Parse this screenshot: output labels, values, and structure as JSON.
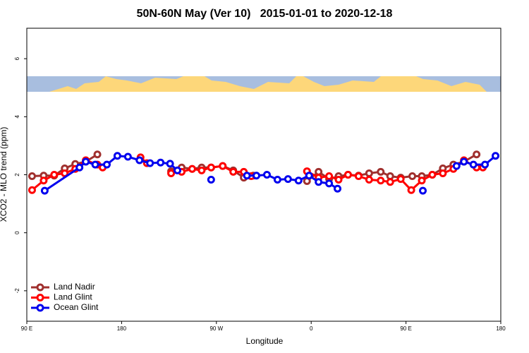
{
  "chart_data": {
    "type": "line",
    "title": "50N-60N May (Ver 10)   2015-01-01 to 2020-12-18",
    "x_label": "Longitude",
    "y_label": "XCO2 - MLO trend (ppm)",
    "xlim": [
      90,
      540
    ],
    "xticks": [
      {
        "value": 90,
        "label": "90 E"
      },
      180,
      {
        "value": 270,
        "label": "90 W"
      },
      {
        "value": 360,
        "label": "0"
      },
      {
        "value": 450,
        "label": "90 E"
      },
      {
        "value": 540,
        "label": "180"
      }
    ],
    "ylim": [
      -3.05,
      7.05
    ],
    "yticks": [
      -2,
      0,
      2,
      4,
      6
    ],
    "legend": "bottom-left",
    "series": [
      {
        "name": "Land Nadir",
        "color": "#a0302e",
        "x": [
          95,
          106,
          116,
          126,
          136,
          146,
          157,
          null,
          227,
          237,
          247,
          256,
          265,
          276,
          286,
          296,
          305,
          null,
          356,
          367,
          377,
          386,
          395,
          405,
          415,
          426,
          435,
          445,
          456,
          465,
          475,
          485,
          495,
          505,
          517
        ],
        "values": [
          1.95,
          1.97,
          1.97,
          2.22,
          2.37,
          2.45,
          2.7,
          null,
          2.12,
          2.25,
          2.2,
          2.25,
          2.25,
          2.3,
          2.15,
          1.9,
          1.97,
          null,
          1.78,
          2.1,
          1.85,
          1.95,
          2.0,
          1.97,
          2.05,
          2.1,
          1.95,
          1.9,
          1.95,
          1.95,
          2.0,
          2.22,
          2.35,
          2.45,
          2.7
        ]
      },
      {
        "name": "Land Glint",
        "color": "#ff0000",
        "x": [
          95,
          106,
          116,
          126,
          136,
          146,
          157,
          162,
          null,
          198,
          204,
          null,
          227,
          237,
          247,
          256,
          265,
          276,
          286,
          296,
          303,
          null,
          356,
          367,
          377,
          386,
          395,
          405,
          415,
          426,
          435,
          445,
          455,
          465,
          475,
          485,
          495,
          505,
          517,
          523
        ],
        "values": [
          1.47,
          1.8,
          2.0,
          2.05,
          2.2,
          2.5,
          2.35,
          2.25,
          null,
          2.6,
          2.4,
          null,
          2.05,
          2.1,
          2.2,
          2.15,
          2.25,
          2.3,
          2.1,
          2.1,
          1.95,
          null,
          2.12,
          1.9,
          1.95,
          1.83,
          2.0,
          1.95,
          1.83,
          1.8,
          1.75,
          1.85,
          1.47,
          1.8,
          2.0,
          2.05,
          2.2,
          2.5,
          2.25,
          2.25
        ]
      },
      {
        "name": "Ocean Glint",
        "color": "#0000ee",
        "x": [
          107,
          140,
          146,
          155,
          166,
          176,
          186,
          197,
          207,
          217,
          226,
          233,
          null,
          265,
          null,
          299,
          308,
          318,
          328,
          338,
          348,
          358,
          367,
          377,
          385,
          null,
          466,
          null,
          498,
          505,
          514,
          525,
          535
        ],
        "values": [
          1.45,
          2.25,
          2.45,
          2.35,
          2.35,
          2.65,
          2.62,
          2.5,
          2.4,
          2.42,
          2.38,
          2.15,
          null,
          1.83,
          null,
          1.97,
          1.97,
          2.0,
          1.83,
          1.85,
          1.8,
          1.97,
          1.75,
          1.7,
          1.52,
          null,
          1.45,
          null,
          2.3,
          2.45,
          2.35,
          2.35,
          2.65
        ]
      }
    ]
  }
}
